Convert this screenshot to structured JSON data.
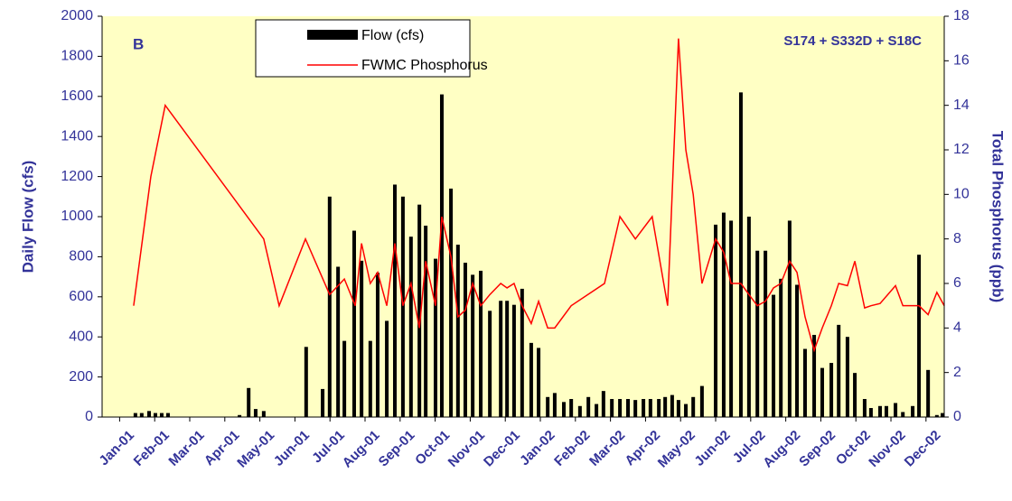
{
  "chart_data": {
    "type": "bar",
    "annotations": [
      "B",
      "S174 + S332D + S18C"
    ],
    "ylabel": "Daily Flow (cfs)",
    "y2label": "Total Phosphorus (ppb)",
    "xlim": [
      -0.5,
      23.52
    ],
    "xticks": [
      {
        "value": 0,
        "label": "Jan-01"
      },
      {
        "value": 1,
        "label": "Feb-01"
      },
      {
        "value": 2,
        "label": "Mar-01"
      },
      {
        "value": 3,
        "label": "Apr-01"
      },
      {
        "value": 4,
        "label": "May-01"
      },
      {
        "value": 5,
        "label": "Jun-01"
      },
      {
        "value": 6,
        "label": "Jul-01"
      },
      {
        "value": 7,
        "label": "Aug-01"
      },
      {
        "value": 8,
        "label": "Sep-01"
      },
      {
        "value": 9,
        "label": "Oct-01"
      },
      {
        "value": 10,
        "label": "Nov-01"
      },
      {
        "value": 11,
        "label": "Dec-01"
      },
      {
        "value": 12,
        "label": "Jan-02"
      },
      {
        "value": 13,
        "label": "Feb-02"
      },
      {
        "value": 14,
        "label": "Mar-02"
      },
      {
        "value": 15,
        "label": "Apr-02"
      },
      {
        "value": 16,
        "label": "May-02"
      },
      {
        "value": 17,
        "label": "Jun-02"
      },
      {
        "value": 18,
        "label": "Jul-02"
      },
      {
        "value": 19,
        "label": "Aug-02"
      },
      {
        "value": 20,
        "label": "Sep-02"
      },
      {
        "value": 21,
        "label": "Oct-02"
      },
      {
        "value": 22,
        "label": "Nov-02"
      },
      {
        "value": 23,
        "label": "Dec-02"
      }
    ],
    "ylim": [
      0,
      2000
    ],
    "yticks": [
      0,
      200,
      400,
      600,
      800,
      1000,
      1200,
      1400,
      1600,
      1800,
      2000
    ],
    "y2lim": [
      0,
      18
    ],
    "y2ticks": [
      0,
      2,
      4,
      6,
      8,
      10,
      12,
      14,
      16,
      18
    ],
    "series": [
      {
        "name": "Flow  (cfs)",
        "type": "bar",
        "color": "#000000",
        "x": [
          0.45,
          0.63,
          0.84,
          1.02,
          1.2,
          1.38,
          3.42,
          3.68,
          3.88,
          4.11,
          5.32,
          5.79,
          5.99,
          6.23,
          6.41,
          6.69,
          6.9,
          7.15,
          7.36,
          7.62,
          7.85,
          8.08,
          8.31,
          8.55,
          8.73,
          9.01,
          9.19,
          9.45,
          9.65,
          9.86,
          10.07,
          10.3,
          10.56,
          10.87,
          11.05,
          11.25,
          11.48,
          11.74,
          11.95,
          12.21,
          12.41,
          12.67,
          12.88,
          13.13,
          13.37,
          13.6,
          13.8,
          14.04,
          14.27,
          14.5,
          14.71,
          14.94,
          15.14,
          15.38,
          15.56,
          15.76,
          15.94,
          16.15,
          16.36,
          16.61,
          17.0,
          17.23,
          17.44,
          17.72,
          17.95,
          18.19,
          18.42,
          18.65,
          18.86,
          19.11,
          19.32,
          19.55,
          19.81,
          20.04,
          20.3,
          20.51,
          20.76,
          20.97,
          21.25,
          21.43,
          21.69,
          21.87,
          22.13,
          22.34,
          22.62,
          22.8,
          23.06,
          23.31,
          23.47
        ],
        "values": [
          20,
          20,
          30,
          20,
          20,
          20,
          10,
          145,
          40,
          30,
          350,
          140,
          1100,
          750,
          380,
          930,
          780,
          380,
          720,
          480,
          1160,
          1100,
          900,
          1060,
          955,
          790,
          1610,
          1140,
          860,
          770,
          710,
          730,
          530,
          580,
          580,
          560,
          640,
          370,
          345,
          100,
          120,
          75,
          90,
          55,
          100,
          65,
          130,
          90,
          90,
          90,
          85,
          90,
          90,
          90,
          100,
          110,
          85,
          65,
          100,
          155,
          960,
          1020,
          980,
          1620,
          1000,
          830,
          830,
          610,
          690,
          980,
          660,
          340,
          410,
          245,
          270,
          460,
          400,
          220,
          90,
          45,
          55,
          55,
          70,
          25,
          55,
          810,
          235,
          10,
          20
        ]
      },
      {
        "name": "FWMC Phosphorus",
        "type": "line",
        "color": "#ff0000",
        "axis": "y2",
        "x": [
          0.4,
          0.89,
          1.3,
          4.11,
          4.55,
          5.3,
          5.99,
          6.41,
          6.72,
          6.9,
          7.15,
          7.36,
          7.62,
          7.85,
          8.08,
          8.31,
          8.55,
          8.73,
          9.01,
          9.19,
          9.45,
          9.65,
          9.86,
          10.07,
          10.3,
          10.56,
          10.87,
          11.05,
          11.25,
          11.48,
          11.74,
          11.95,
          12.21,
          12.41,
          12.88,
          13.83,
          14.27,
          14.71,
          15.19,
          15.63,
          15.94,
          16.15,
          16.36,
          16.61,
          17.0,
          17.23,
          17.44,
          17.72,
          17.95,
          18.19,
          18.42,
          18.65,
          18.86,
          19.11,
          19.32,
          19.55,
          19.81,
          20.04,
          20.3,
          20.51,
          20.76,
          20.97,
          21.25,
          21.43,
          21.69,
          22.13,
          22.34,
          22.62,
          22.8,
          23.06,
          23.31,
          23.52
        ],
        "values": [
          5,
          10.8,
          14,
          8,
          5,
          8,
          5.5,
          6.2,
          5,
          7.8,
          6,
          6.5,
          5,
          7.8,
          5,
          6,
          4,
          7,
          5,
          9,
          7.2,
          4.5,
          4.8,
          6,
          5,
          5.5,
          6,
          5.8,
          6,
          5,
          4.2,
          5.2,
          4,
          4,
          5,
          6,
          9,
          8,
          9,
          5,
          17,
          12,
          10,
          6,
          8,
          7.4,
          6,
          6,
          5.5,
          5,
          5.2,
          5.8,
          6,
          7,
          6.5,
          4.5,
          3,
          4,
          5,
          6,
          5.9,
          7,
          4.9,
          5,
          5.1,
          5.9,
          5,
          5,
          5,
          4.6,
          5.6,
          5
        ]
      }
    ]
  }
}
